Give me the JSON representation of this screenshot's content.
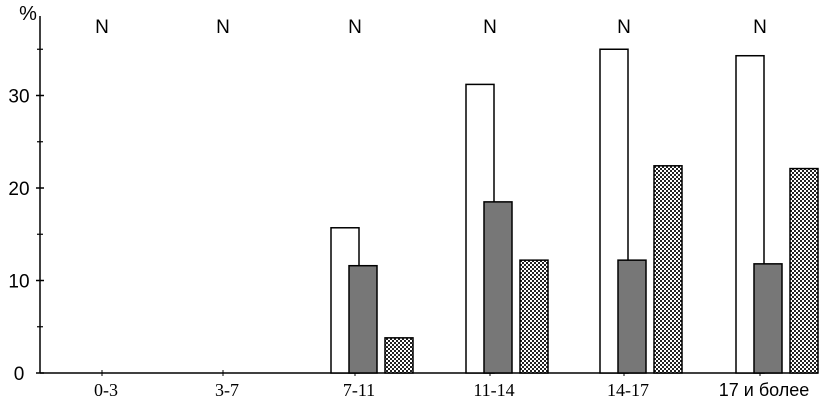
{
  "chart_data": {
    "type": "bar",
    "ylabel": "%",
    "ylim": [
      0,
      38
    ],
    "yticks": [
      0,
      10,
      20,
      30
    ],
    "categories": [
      "0-3",
      "3-7",
      "7-11",
      "11-14",
      "14-17",
      "17 и более"
    ],
    "group_annotation": "N",
    "series": [
      {
        "name": "series-white",
        "fill": "#ffffff",
        "values": [
          0,
          0,
          15.7,
          31.2,
          35.0,
          34.3
        ]
      },
      {
        "name": "series-gray",
        "fill": "#777777",
        "values": [
          0,
          0,
          11.6,
          18.5,
          12.2,
          11.8
        ]
      },
      {
        "name": "series-pattern",
        "fill": "pattern",
        "values": [
          0,
          0,
          3.8,
          12.2,
          22.4,
          22.1
        ]
      }
    ]
  }
}
